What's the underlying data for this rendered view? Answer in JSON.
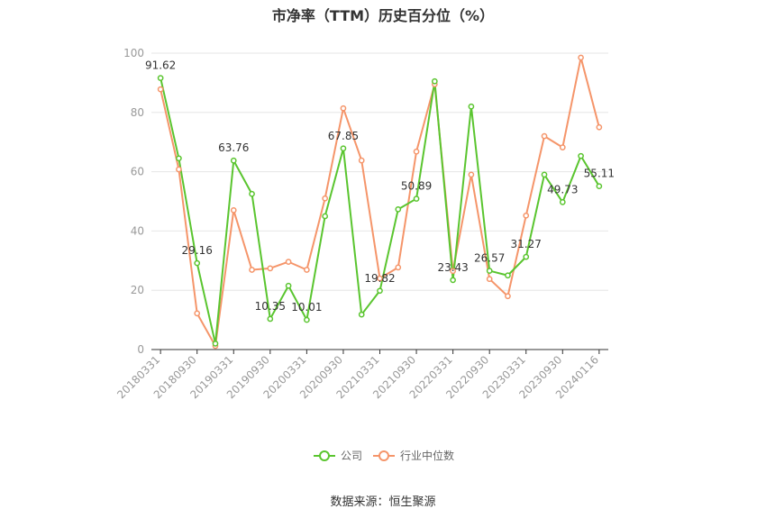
{
  "title": "市净率（TTM）历史百分位（%）",
  "source": "数据来源：恒生聚源",
  "colors": {
    "company": "#5ac52f",
    "industry": "#f5956a",
    "grid": "#e6e6e6",
    "axis": "#333333",
    "tick_text": "#999999",
    "label_text": "#333333"
  },
  "chart_data": {
    "type": "line",
    "ylim": [
      0,
      100
    ],
    "yticks": [
      0,
      20,
      40,
      60,
      80,
      100
    ],
    "xtick_labels": [
      "20180331",
      "20180930",
      "20190331",
      "20190930",
      "20200331",
      "20200930",
      "20210331",
      "20210930",
      "20220331",
      "20220930",
      "20230331",
      "20230930",
      "20240116"
    ],
    "point_count": 25,
    "grid": true,
    "legend_position": "bottom-center",
    "series": [
      {
        "name": "公司",
        "color": "#5ac52f",
        "values": [
          91.62,
          64.5,
          29.16,
          2.0,
          63.76,
          52.5,
          10.35,
          21.5,
          10.01,
          45.0,
          67.85,
          11.8,
          19.82,
          47.3,
          50.89,
          90.5,
          23.43,
          82.0,
          26.57,
          25.0,
          31.27,
          59.0,
          49.73,
          65.3,
          55.11
        ],
        "labels": {
          "0": "91.62",
          "2": "29.16",
          "4": "63.76",
          "6": "10.35",
          "8": "10.01",
          "10": "67.85",
          "12": "19.82",
          "14": "50.89",
          "16": "23.43",
          "18": "26.57",
          "20": "31.27",
          "22": "49.73",
          "24": "55.11"
        }
      },
      {
        "name": "行业中位数",
        "color": "#f5956a",
        "values": [
          87.8,
          60.8,
          12.2,
          1.2,
          47.0,
          26.9,
          27.4,
          29.6,
          26.9,
          51.0,
          81.4,
          63.8,
          24.0,
          27.7,
          66.8,
          89.5,
          26.5,
          59.0,
          23.8,
          18.0,
          45.2,
          72.0,
          68.2,
          98.5,
          75.0
        ]
      }
    ]
  }
}
